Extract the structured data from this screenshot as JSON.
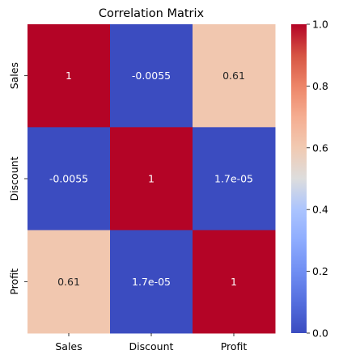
{
  "chart_data": {
    "type": "heatmap",
    "title": "Correlation Matrix",
    "xlabel": "",
    "ylabel": "",
    "x_categories": [
      "Sales",
      "Discount",
      "Profit"
    ],
    "y_categories": [
      "Sales",
      "Discount",
      "Profit"
    ],
    "values": [
      [
        1,
        -0.0055,
        0.61
      ],
      [
        -0.0055,
        1,
        1.7e-05
      ],
      [
        0.61,
        1.7e-05,
        1
      ]
    ],
    "annotations": [
      [
        "1",
        "-0.0055",
        "0.61"
      ],
      [
        "-0.0055",
        "1",
        "1.7e-05"
      ],
      [
        "0.61",
        "1.7e-05",
        "1"
      ]
    ],
    "colormap": "coolwarm",
    "vmin": 0.0,
    "vmax": 1.0,
    "colorbar_ticks": [
      0.0,
      0.2,
      0.4,
      0.6,
      0.8,
      1.0
    ],
    "colorbar_tick_labels": [
      "0.0",
      "0.2",
      "0.4",
      "0.6",
      "0.8",
      "1.0"
    ],
    "colors": {
      "low": "#3b4cc0",
      "mid": "#dddddd",
      "high": "#b40426",
      "text_on_dark": "#ffffff",
      "text_on_light": "#262626"
    },
    "grid": false
  }
}
